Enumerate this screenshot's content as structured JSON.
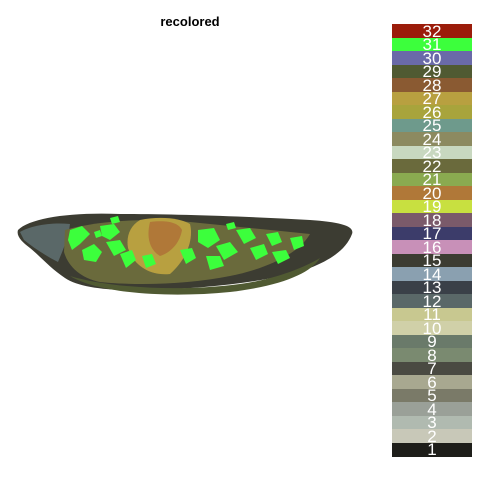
{
  "title": "recolored",
  "legend": {
    "items": [
      {
        "label": "32",
        "color": "#9b1c0a"
      },
      {
        "label": "31",
        "color": "#3cff3c"
      },
      {
        "label": "30",
        "color": "#6a6aa8"
      },
      {
        "label": "29",
        "color": "#505a32"
      },
      {
        "label": "28",
        "color": "#8a5a32"
      },
      {
        "label": "27",
        "color": "#b8a040"
      },
      {
        "label": "26",
        "color": "#a8a43c"
      },
      {
        "label": "25",
        "color": "#6e9a8c"
      },
      {
        "label": "24",
        "color": "#8c8a60"
      },
      {
        "label": "23",
        "color": "#c8d8c0"
      },
      {
        "label": "22",
        "color": "#6a6a3c"
      },
      {
        "label": "21",
        "color": "#8aaa50"
      },
      {
        "label": "20",
        "color": "#b07838"
      },
      {
        "label": "19",
        "color": "#c8e040"
      },
      {
        "label": "18",
        "color": "#7a5a6a"
      },
      {
        "label": "17",
        "color": "#3c3c6a"
      },
      {
        "label": "16",
        "color": "#c890b8"
      },
      {
        "label": "15",
        "color": "#3c3c32"
      },
      {
        "label": "14",
        "color": "#8aa0b0"
      },
      {
        "label": "13",
        "color": "#3a4048"
      },
      {
        "label": "12",
        "color": "#5a6868"
      },
      {
        "label": "11",
        "color": "#c8c890"
      },
      {
        "label": "10",
        "color": "#d0d0a8"
      },
      {
        "label": "9",
        "color": "#6a7a6a"
      },
      {
        "label": "8",
        "color": "#7a8a70"
      },
      {
        "label": "7",
        "color": "#4a4a42"
      },
      {
        "label": "6",
        "color": "#a8a890"
      },
      {
        "label": "5",
        "color": "#7a7a68"
      },
      {
        "label": "4",
        "color": "#9aa098"
      },
      {
        "label": "3",
        "color": "#b0bab0"
      },
      {
        "label": "2",
        "color": "#c8c8b8"
      },
      {
        "label": "1",
        "color": "#1e1e1a"
      }
    ]
  }
}
